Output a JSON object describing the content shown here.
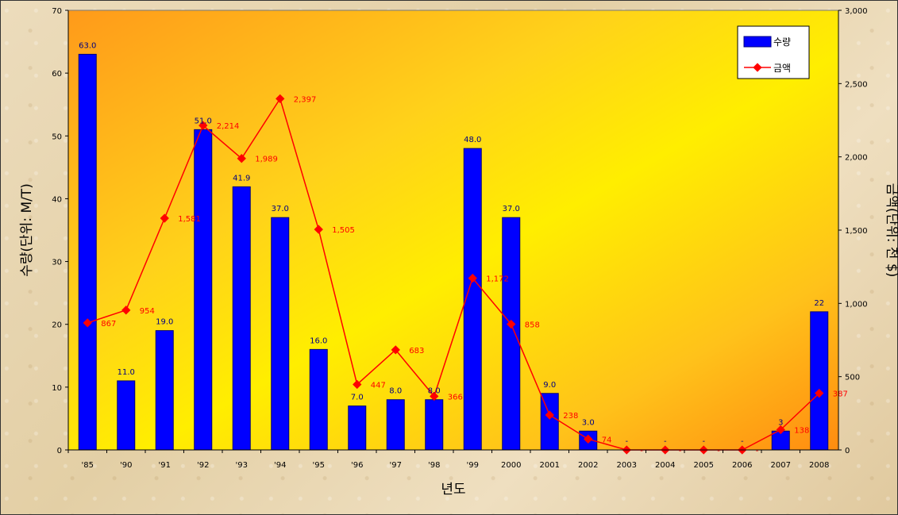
{
  "chart_data": {
    "type": "bar",
    "categories": [
      "'85",
      "'90",
      "'91",
      "'92",
      "'93",
      "'94",
      "'95",
      "'96",
      "'97",
      "'98",
      "'99",
      "2000",
      "2001",
      "2002",
      "2003",
      "2004",
      "2005",
      "2006",
      "2007",
      "2008"
    ],
    "series": [
      {
        "name": "수량",
        "type": "bar",
        "axis": "left",
        "color": "#0000ff",
        "values": [
          63.0,
          11.0,
          19.0,
          51.0,
          41.9,
          37.0,
          16.0,
          7.0,
          8.0,
          8.0,
          48.0,
          37.0,
          9.0,
          3.0,
          0,
          0,
          0,
          0,
          3,
          22
        ],
        "labels": [
          "63.0",
          "11.0",
          "19.0",
          "51.0",
          "41.9",
          "37.0",
          "16.0",
          "7.0",
          "8.0",
          "8.0",
          "48.0",
          "37.0",
          "9.0",
          "3.0",
          "-",
          "-",
          "-",
          "-",
          "3",
          "22"
        ]
      },
      {
        "name": "금액",
        "type": "line",
        "axis": "right",
        "color": "#ff0000",
        "values": [
          867,
          954,
          1581,
          2214,
          1989,
          2397,
          1505,
          447,
          683,
          366,
          1172,
          858,
          238,
          74,
          0,
          0,
          0,
          0,
          138,
          387
        ],
        "labels": [
          "867",
          "954",
          "1,581",
          "2,214",
          "1,989",
          "2,397",
          "1,505",
          "447",
          "683",
          "366",
          "1,172",
          "858",
          "238",
          "74",
          "-",
          "-",
          "-",
          "-",
          "138",
          "387"
        ]
      }
    ],
    "xlabel": "년도",
    "ylabel": "수량(단위: M/T)",
    "y2label": "금액(단위: 천 $)",
    "ylim": [
      0,
      70
    ],
    "y2lim": [
      0,
      3000
    ],
    "yticks": [
      "0",
      "10",
      "20",
      "30",
      "40",
      "50",
      "60",
      "70"
    ],
    "y2ticks": [
      "0",
      "500",
      "1,000",
      "1,500",
      "2,000",
      "2,500",
      "3,000"
    ],
    "legend_position": "top-right",
    "grid": false,
    "plot_background": "yellow-orange gradient"
  }
}
